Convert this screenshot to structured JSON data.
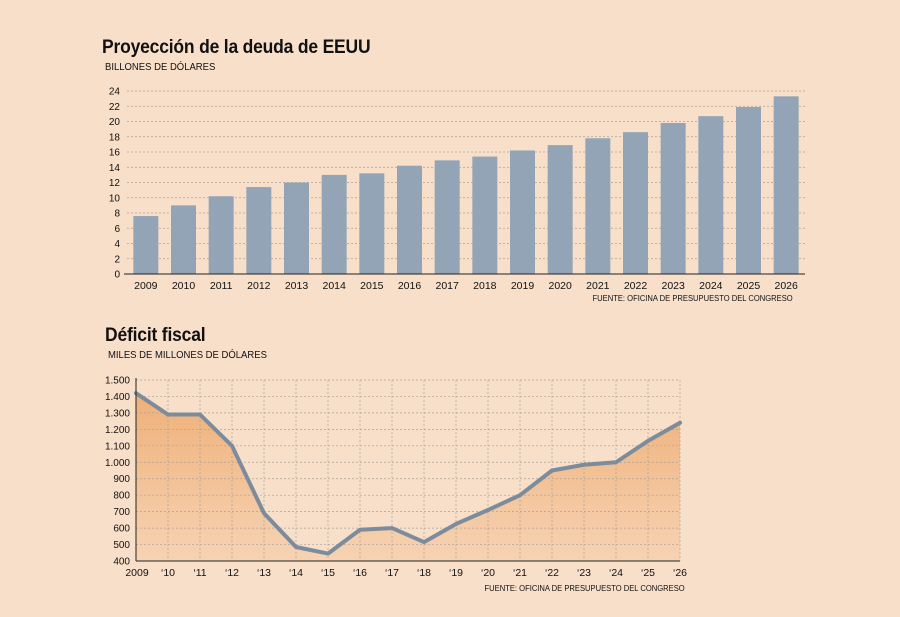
{
  "chart_data": [
    {
      "type": "bar",
      "title": "Proyección de la deuda de EEUU",
      "ylabel": "BILLONES DE DÓLARES",
      "source": "FUENTE: OFICINA DE PRESUPUESTO DEL CONGRESO",
      "categories": [
        "2009",
        "2010",
        "2011",
        "2012",
        "2013",
        "2014",
        "2015",
        "2016",
        "2017",
        "2018",
        "2019",
        "2020",
        "2021",
        "2022",
        "2023",
        "2024",
        "2025",
        "2026"
      ],
      "values": [
        7.6,
        9.0,
        10.2,
        11.4,
        12.0,
        13.0,
        13.2,
        14.2,
        14.9,
        15.4,
        16.2,
        16.9,
        17.8,
        18.6,
        19.8,
        20.7,
        21.9,
        23.3
      ],
      "ylim": [
        0,
        24
      ],
      "yticks": [
        "0",
        "2",
        "4",
        "6",
        "8",
        "10",
        "12",
        "14",
        "16",
        "18",
        "20",
        "22",
        "24"
      ],
      "grid": true,
      "colors": {
        "bar": "#93a4b6",
        "grid": "#a9a29b",
        "axis": "#222222"
      }
    },
    {
      "type": "area",
      "title": "Déficit fiscal",
      "ylabel": "MILES DE MILLONES DE DÓLARES",
      "source": "FUENTE: OFICINA DE PRESUPUESTO DEL CONGRESO",
      "categories": [
        "2009",
        "‘10",
        "‘11",
        "‘12",
        "‘13",
        "‘14",
        "‘15",
        "‘16",
        "‘17",
        "‘18",
        "‘19",
        "‘20",
        "‘21",
        "‘22",
        "‘23",
        "‘24",
        "‘25",
        "‘26"
      ],
      "values": [
        1420,
        1290,
        1290,
        1100,
        690,
        485,
        445,
        590,
        600,
        515,
        625,
        710,
        800,
        950,
        985,
        1000,
        1130,
        1240
      ],
      "ylim": [
        400,
        1500
      ],
      "yticks": [
        "400",
        "500",
        "600",
        "700",
        "800",
        "900",
        "1.000",
        "1.100",
        "1.200",
        "1.300",
        "1.400",
        "1.500"
      ],
      "grid": true,
      "colors": {
        "line": "#7d8c9c",
        "fill_top": "#efb079",
        "fill_bottom": "#f6d3b3",
        "grid": "#a9a29b",
        "axis": "#222222"
      }
    }
  ]
}
